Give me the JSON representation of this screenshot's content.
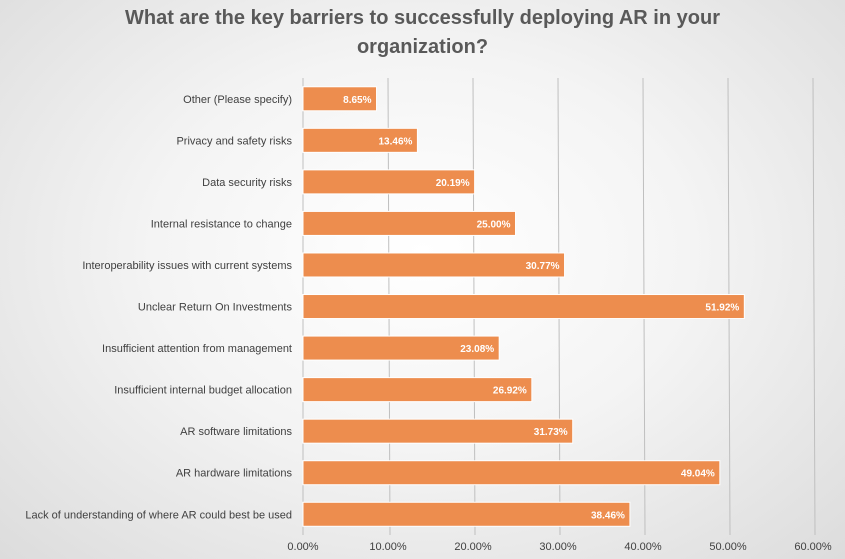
{
  "chart_data": {
    "type": "bar",
    "orientation": "horizontal",
    "title": "What are the key barriers to successfully deploying AR in your organization?",
    "xlabel": "",
    "ylabel": "",
    "categories": [
      "Other (Please specify)",
      "Privacy and safety risks",
      "Data security risks",
      "Internal resistance to change",
      "Interoperability issues with current systems",
      "Unclear Return On Investments",
      "Insufficient attention from management",
      "Insufficient internal budget allocation",
      "AR software limitations",
      "AR hardware limitations",
      "Lack of understanding of where AR could best be used"
    ],
    "values": [
      8.65,
      13.46,
      20.19,
      25.0,
      30.77,
      51.92,
      23.08,
      26.92,
      31.73,
      49.04,
      38.46
    ],
    "value_labels": [
      "8.65%",
      "13.46%",
      "20.19%",
      "25.00%",
      "30.77%",
      "51.92%",
      "23.08%",
      "26.92%",
      "31.73%",
      "49.04%",
      "38.46%"
    ],
    "xlim": [
      0,
      60
    ],
    "xticks": [
      0,
      10,
      20,
      30,
      40,
      50,
      60
    ],
    "xtick_labels": [
      "0.00%",
      "10.00%",
      "20.00%",
      "30.00%",
      "40.00%",
      "50.00%",
      "60.00%"
    ],
    "grid": true,
    "legend": "none",
    "bar_color": "#ED8D4E"
  }
}
